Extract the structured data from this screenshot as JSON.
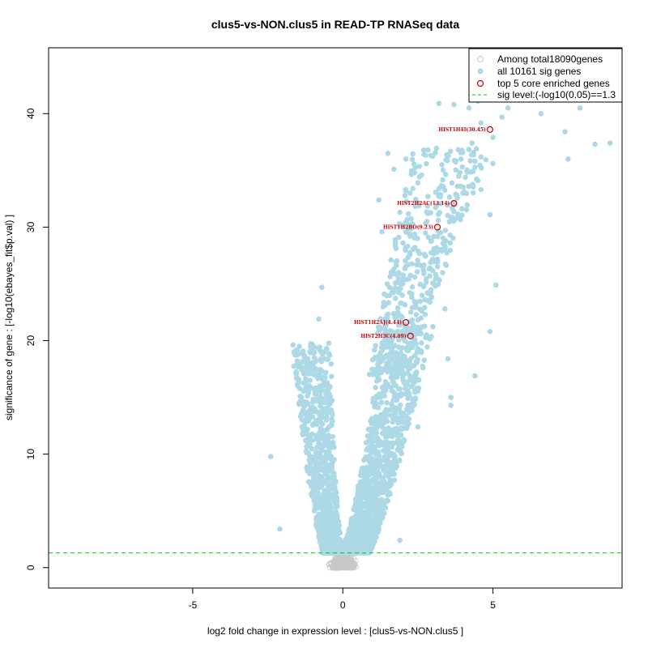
{
  "chart_data": {
    "type": "scatter",
    "title": "clus5-vs-NON.clus5 in READ-TP RNASeq data",
    "xlabel": "log2 fold change in expression level : [clus5-vs-NON.clus5 ]",
    "ylabel": "significance of gene : [-log10(ebayes_fit$p.val) ]",
    "xlim": [
      -9.8,
      9.3
    ],
    "ylim": [
      -1.8,
      45.8
    ],
    "x_ticks": [
      -5,
      0,
      5
    ],
    "x_tick_labels": [
      "-5",
      "0",
      "5"
    ],
    "y_ticks": [
      0,
      10,
      20,
      30,
      40
    ],
    "y_tick_labels": [
      "0",
      "10",
      "20",
      "30",
      "40"
    ],
    "sig_level": 1.3,
    "legend": {
      "position": "top-right",
      "entries": [
        {
          "label": "Among total18090genes",
          "marker": "open-circle",
          "color": "#c8c8c8"
        },
        {
          "label": "all 10161 sig genes",
          "marker": "filled-circle",
          "color": "#add8e6"
        },
        {
          "label": "top 5 core enriched genes",
          "marker": "open-circle",
          "color": "#cc0000"
        },
        {
          "label": "sig level:(-log10(0.05)==1.3",
          "marker": "dashed-line",
          "color": "#00cc00"
        }
      ]
    },
    "colors": {
      "nonsig": "#c8c8c8",
      "sig": "#add8e6",
      "top": "#cc0000",
      "siglevel": "#00cc00"
    },
    "series": [
      {
        "name": "top 5 core enriched genes",
        "points": [
          {
            "label": "HIST1H4I(30.45)",
            "x": 4.9,
            "y": 38.6
          },
          {
            "label": "HIST2H2AC(13.14)",
            "x": 3.7,
            "y": 32.1
          },
          {
            "label": "HIST1H2BO(9.23)",
            "x": 3.15,
            "y": 30.0
          },
          {
            "label": "HIST1H2AJ(4.44)",
            "x": 2.1,
            "y": 21.6
          },
          {
            "label": "HIST2H3C(4.89)",
            "x": 2.25,
            "y": 20.4
          }
        ]
      },
      {
        "name": "all 10161 sig genes (representative outliers)",
        "points": [
          {
            "x": 3.2,
            "y": 40.9
          },
          {
            "x": 3.7,
            "y": 40.8
          },
          {
            "x": 4.2,
            "y": 40.5
          },
          {
            "x": 4.5,
            "y": 41.1
          },
          {
            "x": 5.5,
            "y": 40.5
          },
          {
            "x": 6.0,
            "y": 41.2
          },
          {
            "x": 6.6,
            "y": 40.0
          },
          {
            "x": 7.9,
            "y": 40.5
          },
          {
            "x": 5.3,
            "y": 39.7
          },
          {
            "x": 4.6,
            "y": 39.2
          },
          {
            "x": 5.0,
            "y": 37.9
          },
          {
            "x": 4.3,
            "y": 37.4
          },
          {
            "x": 7.4,
            "y": 38.4
          },
          {
            "x": 8.4,
            "y": 37.3
          },
          {
            "x": 8.9,
            "y": 37.4
          },
          {
            "x": 7.5,
            "y": 36.0
          },
          {
            "x": 5.0,
            "y": 35.6
          },
          {
            "x": 4.4,
            "y": 35.8
          },
          {
            "x": 3.3,
            "y": 35.5
          },
          {
            "x": 3.9,
            "y": 34.8
          },
          {
            "x": 4.0,
            "y": 33.0
          },
          {
            "x": 4.6,
            "y": 33.3
          },
          {
            "x": 4.9,
            "y": 31.1
          },
          {
            "x": 5.1,
            "y": 24.9
          },
          {
            "x": 4.9,
            "y": 20.8
          },
          {
            "x": 4.4,
            "y": 16.9
          },
          {
            "x": 3.6,
            "y": 15.0
          },
          {
            "x": 3.6,
            "y": 14.3
          },
          {
            "x": -2.4,
            "y": 9.8
          },
          {
            "x": -2.1,
            "y": 3.4
          },
          {
            "x": -0.7,
            "y": 24.7
          },
          {
            "x": -0.8,
            "y": 21.9
          },
          {
            "x": 1.5,
            "y": 36.5
          },
          {
            "x": 2.1,
            "y": 36.0
          },
          {
            "x": 1.7,
            "y": 35.1
          },
          {
            "x": 2.5,
            "y": 33.9
          },
          {
            "x": 1.2,
            "y": 32.4
          },
          {
            "x": 1.9,
            "y": 31.3
          },
          {
            "x": 2.8,
            "y": 30.5
          },
          {
            "x": 1.3,
            "y": 29.6
          },
          {
            "x": 2.4,
            "y": 28.2
          },
          {
            "x": 3.3,
            "y": 27.9
          },
          {
            "x": 1.6,
            "y": 27.1
          },
          {
            "x": 2.0,
            "y": 25.3
          },
          {
            "x": 2.9,
            "y": 23.4
          },
          {
            "x": 3.4,
            "y": 22.8
          },
          {
            "x": 1.4,
            "y": 23.1
          },
          {
            "x": 2.6,
            "y": 19.1
          },
          {
            "x": 3.5,
            "y": 18.4
          },
          {
            "x": 2.2,
            "y": 13.1
          },
          {
            "x": 2.5,
            "y": 12.4
          },
          {
            "x": 1.9,
            "y": 2.4
          }
        ]
      }
    ]
  }
}
